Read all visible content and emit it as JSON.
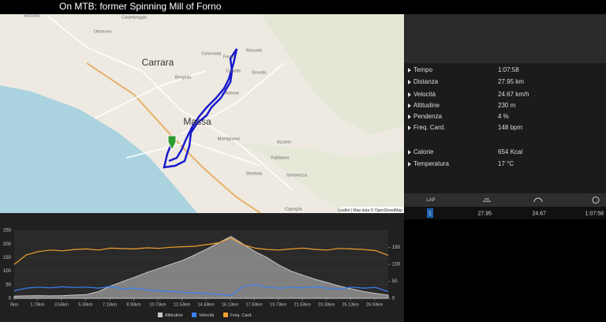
{
  "header": {
    "title": "On MTB: former Spinning Mill of Forno"
  },
  "map": {
    "labels": [
      "Carrara",
      "Massa",
      "Montignoso",
      "Castelpoggio",
      "Colonnata",
      "Bergiola",
      "Casette",
      "Antona",
      "Gronda",
      "Resceto",
      "Forno",
      "Azzano",
      "Fabbiano",
      "Seravezza",
      "Strettoia",
      "Capriglia",
      "Ortonovo",
      "Sarzana"
    ],
    "attribution": "Leaflet | Map data © OpenStreetMap"
  },
  "stats": [
    {
      "label": "Tempo",
      "value": "1:07:58"
    },
    {
      "label": "Distanza",
      "value": "27.95 km"
    },
    {
      "label": "Velocità",
      "value": "24.67 km/h"
    },
    {
      "label": "Altitudine",
      "value": "230 m"
    },
    {
      "label": "Pendenza",
      "value": "4 %"
    },
    {
      "label": "Freq. Card.",
      "value": "148 bpm"
    },
    {
      "label": "Calorie",
      "value": "654 Kcal"
    },
    {
      "label": "Temperatura",
      "value": "17 °C"
    }
  ],
  "laps": {
    "header": "LAP",
    "rows": [
      [
        "1",
        "27.95",
        "24.67",
        "1:07:58"
      ]
    ]
  },
  "chart_data": {
    "type": "line",
    "x": [
      0,
      0.9,
      1.8,
      2.7,
      3.6,
      4.5,
      5.4,
      6.3,
      7.2,
      8.1,
      9.0,
      9.9,
      10.8,
      11.7,
      12.6,
      13.5,
      14.4,
      15.3,
      16.2,
      17.1,
      18.0,
      18.9,
      19.8,
      20.7,
      21.6,
      22.5,
      23.4,
      24.3,
      25.2,
      26.1,
      27.0,
      27.95
    ],
    "series": [
      {
        "name": "Altitudine",
        "color": "#c8c8c8",
        "values": [
          8,
          9,
          10,
          9,
          10,
          12,
          14,
          25,
          45,
          62,
          78,
          95,
          110,
          125,
          140,
          160,
          182,
          205,
          228,
          200,
          172,
          150,
          122,
          100,
          85,
          70,
          58,
          45,
          35,
          25,
          18,
          12
        ]
      },
      {
        "name": "Velocità",
        "color": "#3b82f6",
        "axis": "y2",
        "values": [
          22,
          30,
          33,
          31,
          34,
          32,
          33,
          30,
          35,
          28,
          30,
          25,
          22,
          20,
          18,
          16,
          14,
          12,
          8,
          35,
          40,
          33,
          30,
          32,
          31,
          34,
          30,
          28,
          33,
          30,
          32,
          20
        ]
      },
      {
        "name": "Freq. Card.",
        "color": "#f0a030",
        "values": [
          125,
          160,
          172,
          178,
          175,
          180,
          182,
          178,
          185,
          183,
          182,
          186,
          184,
          188,
          190,
          192,
          198,
          205,
          222,
          198,
          185,
          180,
          178,
          182,
          185,
          180,
          178,
          184,
          182,
          180,
          176,
          158
        ]
      }
    ],
    "xlim": [
      0,
      27.95
    ],
    "xticks": [
      {
        "value": 0,
        "label": "0km"
      },
      {
        "value": 1.73,
        "label": "1.73km"
      },
      {
        "value": 3.53,
        "label": "3.53km"
      },
      {
        "value": 5.33,
        "label": "5.33km"
      },
      {
        "value": 7.13,
        "label": "7.13km"
      },
      {
        "value": 8.93,
        "label": "8.93km"
      },
      {
        "value": 10.73,
        "label": "10.73km"
      },
      {
        "value": 12.53,
        "label": "12.53km"
      },
      {
        "value": 14.33,
        "label": "14.33km"
      },
      {
        "value": 16.13,
        "label": "16.13km"
      },
      {
        "value": 17.93,
        "label": "17.93km"
      },
      {
        "value": 19.73,
        "label": "19.73km"
      },
      {
        "value": 21.53,
        "label": "21.53km"
      },
      {
        "value": 23.33,
        "label": "23.33km"
      },
      {
        "value": 25.13,
        "label": "25.13km"
      },
      {
        "value": 26.93,
        "label": "26.93km"
      }
    ],
    "ylim": [
      0,
      250
    ],
    "yticks": [
      0,
      50,
      100,
      150,
      200,
      250
    ],
    "y2lim": [
      0,
      200
    ],
    "y2ticks": [
      0,
      50,
      100,
      150
    ],
    "grid": true
  }
}
